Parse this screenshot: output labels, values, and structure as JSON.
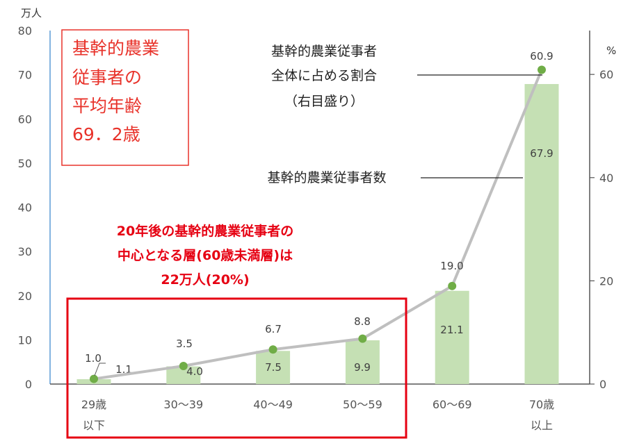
{
  "chart_data": {
    "type": "bar",
    "categories": [
      [
        "29歳",
        "以下"
      ],
      [
        "30〜39"
      ],
      [
        "40〜49"
      ],
      [
        "50〜59"
      ],
      [
        "60〜69"
      ],
      [
        "70歳",
        "以上"
      ]
    ],
    "series": [
      {
        "name": "基幹的農業従事者数",
        "axis": "left",
        "type": "bar",
        "values": [
          1.1,
          4.0,
          7.5,
          9.9,
          21.1,
          67.9
        ],
        "labels": [
          "1.1",
          "4.0",
          "7.5",
          "9.9",
          "21.1",
          "67.9"
        ]
      },
      {
        "name": "基幹的農業従事者 全体に占める割合 （右目盛り）",
        "axis": "right",
        "type": "line",
        "values": [
          1.0,
          3.5,
          6.7,
          8.8,
          19.0,
          60.9
        ],
        "labels": [
          "1.0",
          "3.5",
          "6.7",
          "8.8",
          "19.0",
          "60.9"
        ]
      }
    ],
    "y_left": {
      "unit": "万人",
      "lim": [
        0,
        80
      ],
      "ticks": [
        "0",
        "10",
        "20",
        "30",
        "40",
        "50",
        "60",
        "70",
        "80"
      ]
    },
    "y_right": {
      "unit": "%",
      "lim": [
        0,
        68.5
      ],
      "ticks": [
        "0",
        "20",
        "40",
        "60"
      ]
    },
    "colors": {
      "bar": "#c5e0b4",
      "line": "#bfbfbf",
      "point": "#70ad47",
      "highlight": "#e60012",
      "left_axis": "#5b9bd5"
    },
    "annotations": {
      "average_box": [
        "基幹的農業",
        "従事者の",
        "平均年齢",
        "69．2歳"
      ],
      "line_label": [
        "基幹的農業従事者",
        "全体に占める割合",
        "（右目盛り）"
      ],
      "bar_label": "基幹的農業従事者数",
      "highlight_text": [
        "20年後の基幹的農業従事者の",
        "中心となる層(60歳未満層)は",
        "22万人(20%)"
      ]
    }
  }
}
